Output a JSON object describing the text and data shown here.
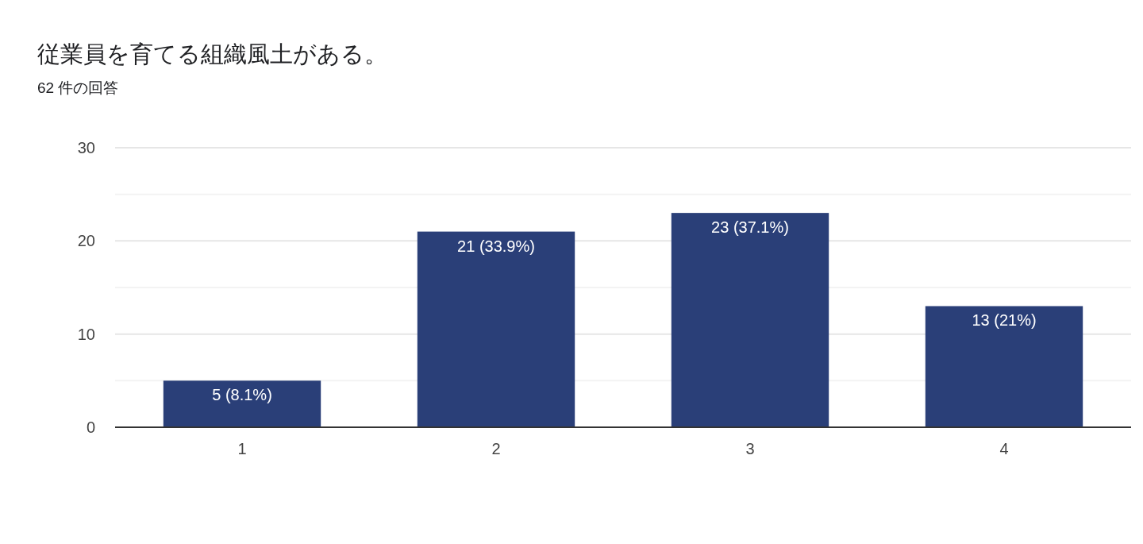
{
  "chart_data": {
    "type": "bar",
    "title": "従業員を育てる組織風土がある。",
    "subtitle": "62 件の回答",
    "categories": [
      "1",
      "2",
      "3",
      "4"
    ],
    "values": [
      5,
      21,
      23,
      13
    ],
    "value_labels": [
      "5 (8.1%)",
      "21 (33.9%)",
      "23 (37.1%)",
      "13 (21%)"
    ],
    "color": "#2a3f78",
    "ylim": [
      0,
      30
    ],
    "yticks": [
      0,
      {
        "value": 5,
        "label": null
      },
      10,
      {
        "value": 15,
        "label": null
      },
      20,
      {
        "value": 25,
        "label": null
      },
      30
    ],
    "grid": "y"
  }
}
